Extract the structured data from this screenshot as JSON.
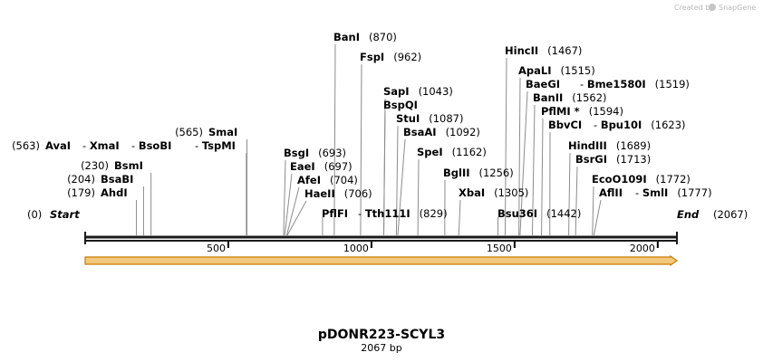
{
  "branding": {
    "created_by": "Created by",
    "product": "SnapGene",
    "icon": "snapgene-logo-icon"
  },
  "plasmid": {
    "name": "pDONR223-SCYL3",
    "size_label": "2067 bp",
    "length": 2067
  },
  "ends": {
    "start": {
      "label": "Start",
      "pos_label": "(0)"
    },
    "end": {
      "label": "End",
      "pos_label": "(2067)"
    }
  },
  "ruler": {
    "ticks": [
      "500",
      "1000",
      "1500",
      "2000"
    ],
    "tick_values": [
      500,
      1000,
      1500,
      2000
    ]
  },
  "feature": {
    "name": "ORF arrow",
    "start": 0,
    "end": 2067,
    "direction": "forward",
    "fill": "#f3c87d",
    "stroke": "#c77c00"
  },
  "colors": {
    "backbone": "#1a1a1a",
    "leader": "#8c8c8c",
    "tick": "#000000"
  },
  "sites": [
    {
      "id": "ahdI",
      "sep": "",
      "label": "AhdI",
      "pos": 179,
      "pos_label": "(179)"
    },
    {
      "id": "bsaBI",
      "sep": "",
      "label": "BsaBI",
      "pos": 204,
      "pos_label": "(204)"
    },
    {
      "id": "bsmI",
      "sep": "",
      "label": "BsmI",
      "pos": 230,
      "pos_label": "(230)"
    },
    {
      "id": "tspMI",
      "sep": "- ",
      "label": "TspMI",
      "pos": 563,
      "pos_label": ""
    },
    {
      "id": "bsoBI",
      "sep": "- ",
      "label": "BsoBI",
      "pos": 563,
      "pos_label": ""
    },
    {
      "id": "xmaI",
      "sep": "- ",
      "label": "XmaI",
      "pos": 563,
      "pos_label": ""
    },
    {
      "id": "avaI",
      "sep": "",
      "label": "AvaI",
      "pos": 563,
      "pos_label": "(563)"
    },
    {
      "id": "smaI",
      "sep": "",
      "label": "SmaI",
      "pos": 565,
      "pos_label": "(565)"
    },
    {
      "id": "bsgI",
      "sep": "",
      "label": "BsgI",
      "pos": 693,
      "pos_label": "(693)"
    },
    {
      "id": "eaeI",
      "sep": "",
      "label": "EaeI",
      "pos": 697,
      "pos_label": "(697)"
    },
    {
      "id": "afeI",
      "sep": "",
      "label": "AfeI",
      "pos": 704,
      "pos_label": "(704)"
    },
    {
      "id": "haeII",
      "sep": "",
      "label": "HaeII",
      "pos": 706,
      "pos_label": "(706)"
    },
    {
      "id": "tth111I",
      "sep": "- ",
      "label": "Tth111I",
      "pos": 829,
      "pos_label": "(829)"
    },
    {
      "id": "pflFI",
      "sep": "",
      "label": "PflFI",
      "pos": 829,
      "pos_label": ""
    },
    {
      "id": "banI",
      "sep": "",
      "label": "BanI",
      "pos": 870,
      "pos_label": "(870)"
    },
    {
      "id": "fspI",
      "sep": "",
      "label": "FspI",
      "pos": 962,
      "pos_label": "(962)"
    },
    {
      "id": "sapI",
      "sep": "",
      "label": "SapI",
      "pos": 1043,
      "pos_label": "(1043)"
    },
    {
      "id": "bspQI",
      "sep": "",
      "label": "BspQI",
      "pos": 1043,
      "pos_label": ""
    },
    {
      "id": "stuI",
      "sep": "",
      "label": "StuI",
      "pos": 1087,
      "pos_label": "(1087)"
    },
    {
      "id": "bsaAI",
      "sep": "",
      "label": "BsaAI",
      "pos": 1092,
      "pos_label": "(1092)"
    },
    {
      "id": "speI",
      "sep": "",
      "label": "SpeI",
      "pos": 1162,
      "pos_label": "(1162)"
    },
    {
      "id": "bglII",
      "sep": "",
      "label": "BglII",
      "pos": 1256,
      "pos_label": "(1256)"
    },
    {
      "id": "xbaI",
      "sep": "",
      "label": "XbaI",
      "pos": 1305,
      "pos_label": "(1305)"
    },
    {
      "id": "bsu36I",
      "sep": "",
      "label": "Bsu36I",
      "pos": 1442,
      "pos_label": "(1442)"
    },
    {
      "id": "hincII",
      "sep": "",
      "label": "HincII",
      "pos": 1467,
      "pos_label": "(1467)"
    },
    {
      "id": "apaLI",
      "sep": "",
      "label": "ApaLI",
      "pos": 1515,
      "pos_label": "(1515)"
    },
    {
      "id": "bme1580I",
      "sep": "- ",
      "label": "Bme1580I",
      "pos": 1519,
      "pos_label": "(1519)"
    },
    {
      "id": "baeGI",
      "sep": "",
      "label": "BaeGI",
      "pos": 1519,
      "pos_label": ""
    },
    {
      "id": "banII",
      "sep": "",
      "label": "BanII",
      "pos": 1562,
      "pos_label": "(1562)"
    },
    {
      "id": "pflMI",
      "sep": "",
      "label": "PflMI *",
      "pos": 1594,
      "pos_label": "(1594)"
    },
    {
      "id": "bpu10I",
      "sep": "- ",
      "label": "Bpu10I",
      "pos": 1623,
      "pos_label": "(1623)"
    },
    {
      "id": "bbvCI",
      "sep": "",
      "label": "BbvCI",
      "pos": 1623,
      "pos_label": ""
    },
    {
      "id": "hindIII",
      "sep": "",
      "label": "HindIII",
      "pos": 1689,
      "pos_label": "(1689)"
    },
    {
      "id": "bsrGI",
      "sep": "",
      "label": "BsrGI",
      "pos": 1713,
      "pos_label": "(1713)"
    },
    {
      "id": "ecoO109I",
      "sep": "",
      "label": "EcoO109I",
      "pos": 1772,
      "pos_label": "(1772)"
    },
    {
      "id": "smlI",
      "sep": "- ",
      "label": "SmlI",
      "pos": 1777,
      "pos_label": "(1777)"
    },
    {
      "id": "aflII",
      "sep": "",
      "label": "AflII",
      "pos": 1777,
      "pos_label": ""
    }
  ]
}
